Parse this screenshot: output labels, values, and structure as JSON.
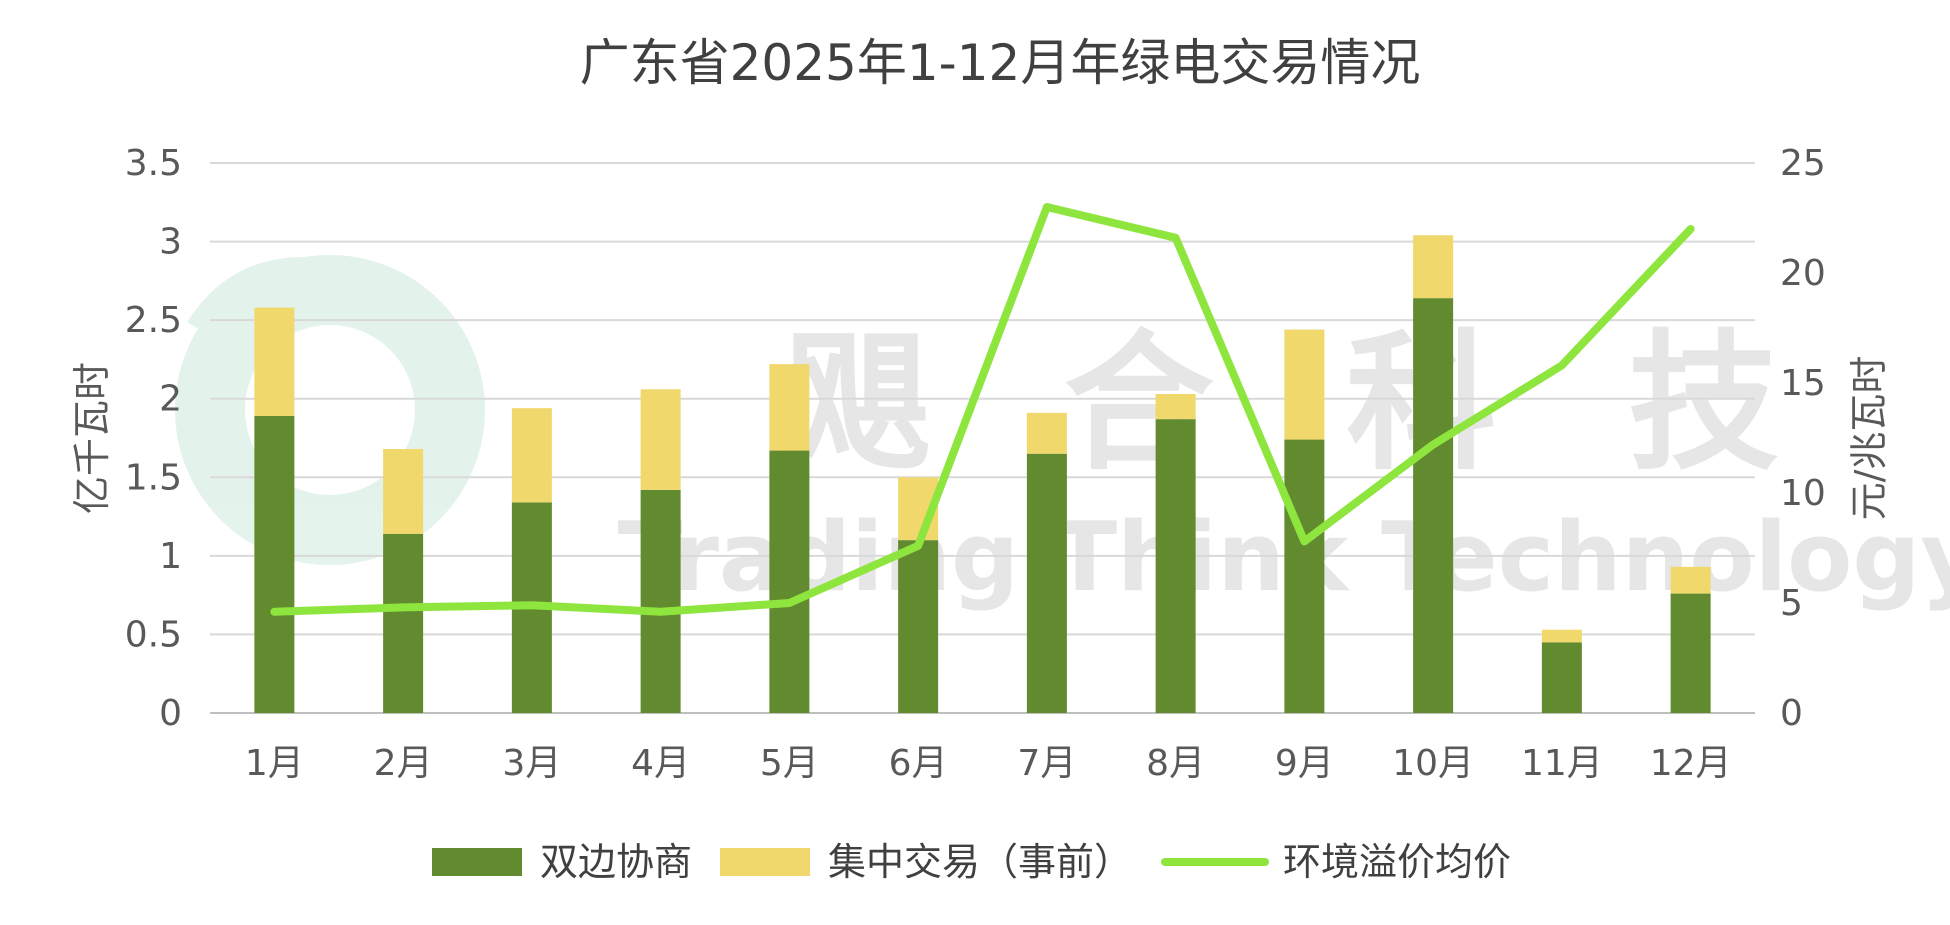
{
  "chart_data": {
    "type": "bar",
    "title": "广东省2025年1-12月年绿电交易情况",
    "categories": [
      "1月",
      "2月",
      "3月",
      "4月",
      "5月",
      "6月",
      "7月",
      "8月",
      "9月",
      "10月",
      "11月",
      "12月"
    ],
    "series": [
      {
        "name": "双边协商",
        "kind": "bar",
        "stack": "total",
        "axis": "left",
        "color": "#628a2f",
        "values": [
          1.89,
          1.14,
          1.34,
          1.42,
          1.67,
          1.1,
          1.65,
          1.87,
          1.74,
          2.64,
          0.45,
          0.76
        ]
      },
      {
        "name": "集中交易（事前）",
        "kind": "bar",
        "stack": "total",
        "axis": "left",
        "color": "#f0d86c",
        "values": [
          0.69,
          0.54,
          0.6,
          0.64,
          0.55,
          0.4,
          0.26,
          0.16,
          0.7,
          0.4,
          0.08,
          0.17
        ]
      },
      {
        "name": "环境溢价均价",
        "kind": "line",
        "axis": "right",
        "color": "#8ee53d",
        "values": [
          4.6,
          4.8,
          4.9,
          4.6,
          5.0,
          7.6,
          23.0,
          21.6,
          7.8,
          12.2,
          15.8,
          22.0
        ]
      }
    ],
    "ylabel": "亿千瓦时",
    "y2label": "元/兆瓦时",
    "ylim": [
      0,
      3.5
    ],
    "y2lim": [
      0,
      25
    ],
    "yticks": [
      "0",
      "0.5",
      "1",
      "1.5",
      "2",
      "2.5",
      "3",
      "3.5"
    ],
    "y2ticks": [
      "0",
      "5",
      "10",
      "15",
      "20",
      "25"
    ],
    "grid": true,
    "legend_position": "bottom"
  },
  "watermark": {
    "cn": "飓 合 科 技",
    "en": "Trading Think Technology"
  }
}
